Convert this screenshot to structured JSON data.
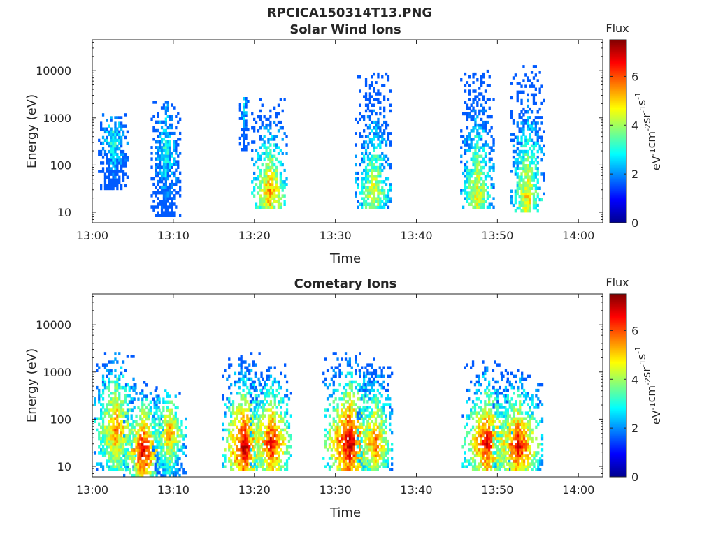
{
  "figure": {
    "title": "RPCICA150314T13.PNG"
  },
  "chart_data": [
    {
      "type": "heatmap",
      "title": "Solar Wind Ions",
      "xlabel": "Time",
      "ylabel": "Energy (eV)",
      "x_ticks": [
        "13:00",
        "13:10",
        "13:20",
        "13:30",
        "13:40",
        "13:50",
        "14:00"
      ],
      "x_range_minutes": [
        0,
        63
      ],
      "y_scale": "log",
      "y_range": [
        6,
        45000
      ],
      "y_ticks": [
        {
          "value": 10,
          "label": "10"
        },
        {
          "value": 100,
          "label": "100"
        },
        {
          "value": 1000,
          "label": "1000"
        },
        {
          "value": 10000,
          "label": "10000"
        }
      ],
      "colorbar": {
        "title": "Flux",
        "label": "eV^-1 cm^-2 sr^-1 s^-1",
        "range": [
          0,
          7.5
        ],
        "ticks": [
          "0",
          "2",
          "4",
          "6"
        ],
        "colormap": "jet"
      },
      "grid": false,
      "bursts": [
        {
          "t": 2.5,
          "w": 1.8,
          "elow": 30,
          "ehigh": 1200,
          "peak": 3.2,
          "core": 300
        },
        {
          "t": 9.0,
          "w": 1.8,
          "elow": 8,
          "ehigh": 2500,
          "peak": 3.0,
          "core": 200
        },
        {
          "t": 18.6,
          "w": 0.5,
          "elow": 200,
          "ehigh": 2500,
          "peak": 2.8,
          "core": 1500
        },
        {
          "t": 21.8,
          "w": 2.2,
          "elow": 12,
          "ehigh": 2500,
          "peak": 5.6,
          "core": 25
        },
        {
          "t": 34.6,
          "w": 2.2,
          "elow": 12,
          "ehigh": 8000,
          "peak": 4.6,
          "core": 25
        },
        {
          "t": 47.4,
          "w": 2.0,
          "elow": 12,
          "ehigh": 10000,
          "peak": 4.8,
          "core": 25
        },
        {
          "t": 53.6,
          "w": 2.0,
          "elow": 10,
          "ehigh": 12000,
          "peak": 5.0,
          "core": 20
        }
      ]
    },
    {
      "type": "heatmap",
      "title": "Cometary Ions",
      "xlabel": "Time",
      "ylabel": "Energy (eV)",
      "x_ticks": [
        "13:00",
        "13:10",
        "13:20",
        "13:30",
        "13:40",
        "13:50",
        "14:00"
      ],
      "x_range_minutes": [
        0,
        63
      ],
      "y_scale": "log",
      "y_range": [
        6,
        45000
      ],
      "y_ticks": [
        {
          "value": 10,
          "label": "10"
        },
        {
          "value": 100,
          "label": "100"
        },
        {
          "value": 1000,
          "label": "1000"
        },
        {
          "value": 10000,
          "label": "10000"
        }
      ],
      "colorbar": {
        "title": "Flux",
        "label": "eV^-1 cm^-2 sr^-1 s^-1",
        "range": [
          0,
          7.5
        ],
        "ticks": [
          "0",
          "2",
          "4",
          "6"
        ],
        "colormap": "jet"
      },
      "grid": false,
      "bursts": [
        {
          "t": 2.8,
          "w": 2.6,
          "elow": 8,
          "ehigh": 2500,
          "peak": 5.8,
          "core": 60
        },
        {
          "t": 6.2,
          "w": 2.4,
          "elow": 6,
          "ehigh": 600,
          "peak": 7.0,
          "core": 20
        },
        {
          "t": 9.4,
          "w": 2.0,
          "elow": 6,
          "ehigh": 400,
          "peak": 5.6,
          "core": 50
        },
        {
          "t": 18.6,
          "w": 2.6,
          "elow": 8,
          "ehigh": 2600,
          "peak": 7.2,
          "core": 25
        },
        {
          "t": 22.0,
          "w": 2.6,
          "elow": 8,
          "ehigh": 1400,
          "peak": 6.8,
          "core": 30
        },
        {
          "t": 31.6,
          "w": 3.2,
          "elow": 8,
          "ehigh": 2600,
          "peak": 7.2,
          "core": 30
        },
        {
          "t": 34.8,
          "w": 2.2,
          "elow": 8,
          "ehigh": 1500,
          "peak": 6.0,
          "core": 30
        },
        {
          "t": 48.6,
          "w": 3.0,
          "elow": 8,
          "ehigh": 1600,
          "peak": 6.8,
          "core": 30
        },
        {
          "t": 52.4,
          "w": 3.0,
          "elow": 8,
          "ehigh": 1100,
          "peak": 6.8,
          "core": 25
        }
      ]
    }
  ]
}
